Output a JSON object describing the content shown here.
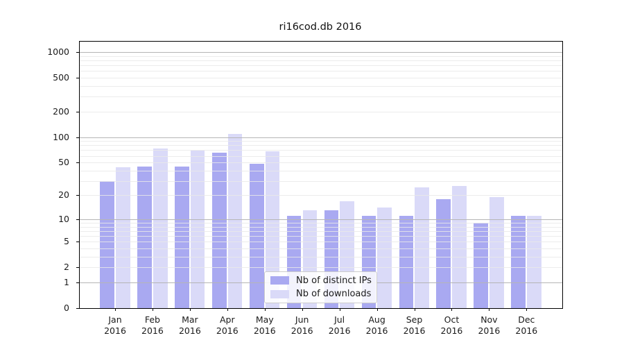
{
  "title": "ri16cod.db 2016",
  "chart_data": {
    "type": "bar",
    "title": "ri16cod.db 2016",
    "categories": [
      "Jan 2016",
      "Feb 2016",
      "Mar 2016",
      "Apr 2016",
      "May 2016",
      "Jun 2016",
      "Jul 2016",
      "Aug 2016",
      "Sep 2016",
      "Oct 2016",
      "Nov 2016",
      "Dec 2016"
    ],
    "series": [
      {
        "name": "Nb of distinct IPs",
        "color": "#a9a9f1",
        "values": [
          30,
          45,
          45,
          66,
          48,
          11,
          13,
          11,
          11,
          18,
          9,
          11
        ]
      },
      {
        "name": "Nb of downloads",
        "color": "#dadaf8",
        "values": [
          44,
          73,
          69,
          110,
          68,
          13,
          17,
          14,
          25,
          26,
          19,
          11
        ]
      }
    ],
    "xlabel": "",
    "ylabel": "",
    "y_scale": "log1p",
    "y_ticks": [
      1000,
      500,
      200,
      100,
      50,
      20,
      10,
      5,
      2,
      1,
      0
    ],
    "y_minor_gridlines": [
      2,
      3,
      4,
      5,
      6,
      7,
      8,
      9,
      20,
      30,
      40,
      50,
      60,
      70,
      80,
      90,
      200,
      300,
      400,
      500,
      600,
      700,
      800,
      900
    ],
    "y_major_gridlines": [
      1,
      10,
      100,
      1000
    ],
    "ylim": [
      0,
      1330
    ],
    "grid": "horizontal major and minor, drawn over bars",
    "legend_position": "inside lower center"
  },
  "legend": {
    "entries": [
      {
        "label": "Nb of distinct IPs",
        "color": "#a9a9f1"
      },
      {
        "label": "Nb of downloads",
        "color": "#dadaf8"
      }
    ]
  },
  "colors": {
    "bar_dark": "#a9a9f1",
    "bar_light": "#dadaf8",
    "grid_major": "#b5b5b5",
    "grid_minor": "#e9e9e9",
    "spine": "#000000",
    "background": "#ffffff"
  }
}
